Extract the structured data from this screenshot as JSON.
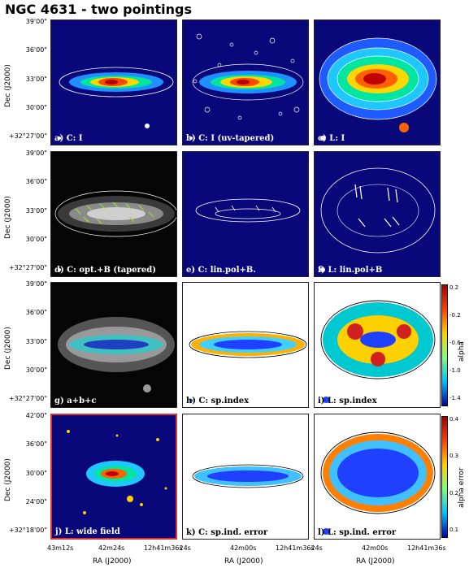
{
  "title": "NGC 4631 - two pointings",
  "axes": {
    "ylabel": "Dec (J2000)",
    "xlabel": "RA (J2000)",
    "dec_ticks_standard": [
      "39'00\"",
      "36'00\"",
      "33'00\"",
      "30'00\"",
      "+32°27'00\""
    ],
    "dec_ticks_wide": [
      "42'00\"",
      "36'00\"",
      "30'00\"",
      "24'00\"",
      "+32°18'00\""
    ],
    "ra_ticks_left": [
      "43m12s",
      "42m24s",
      "12h41m36s"
    ],
    "ra_ticks_mid": [
      "24s",
      "42m00s",
      "12h41m36s"
    ],
    "ra_ticks_right": [
      "24s",
      "42m00s",
      "12h41m36s"
    ]
  },
  "panels": [
    {
      "label": "a) C: I"
    },
    {
      "label": "b) C: I (uv-tapered)"
    },
    {
      "label": "c) L: I"
    },
    {
      "label": "d) C: opt.+B (tapered)"
    },
    {
      "label": "e) C: lin.pol+B."
    },
    {
      "label": "f) L: lin.pol+B"
    },
    {
      "label": "g)  a+b+c"
    },
    {
      "label": "h) C: sp.index"
    },
    {
      "label": "i) L: sp.index"
    },
    {
      "label": "j) L: wide field"
    },
    {
      "label": "k) C: sp.ind. error"
    },
    {
      "label": "l) L: sp.ind. error"
    }
  ],
  "colorbars": [
    {
      "label": "alpha",
      "ticks": [
        "0.2",
        "-0.2",
        "-0.6",
        "-1.0",
        "-1.4"
      ]
    },
    {
      "label": "alpha error",
      "ticks": [
        "0.4",
        "0.3",
        "0.2",
        "0.1"
      ]
    }
  ],
  "colors": {
    "background": "#08087a",
    "highlight_border": "#e03030"
  }
}
